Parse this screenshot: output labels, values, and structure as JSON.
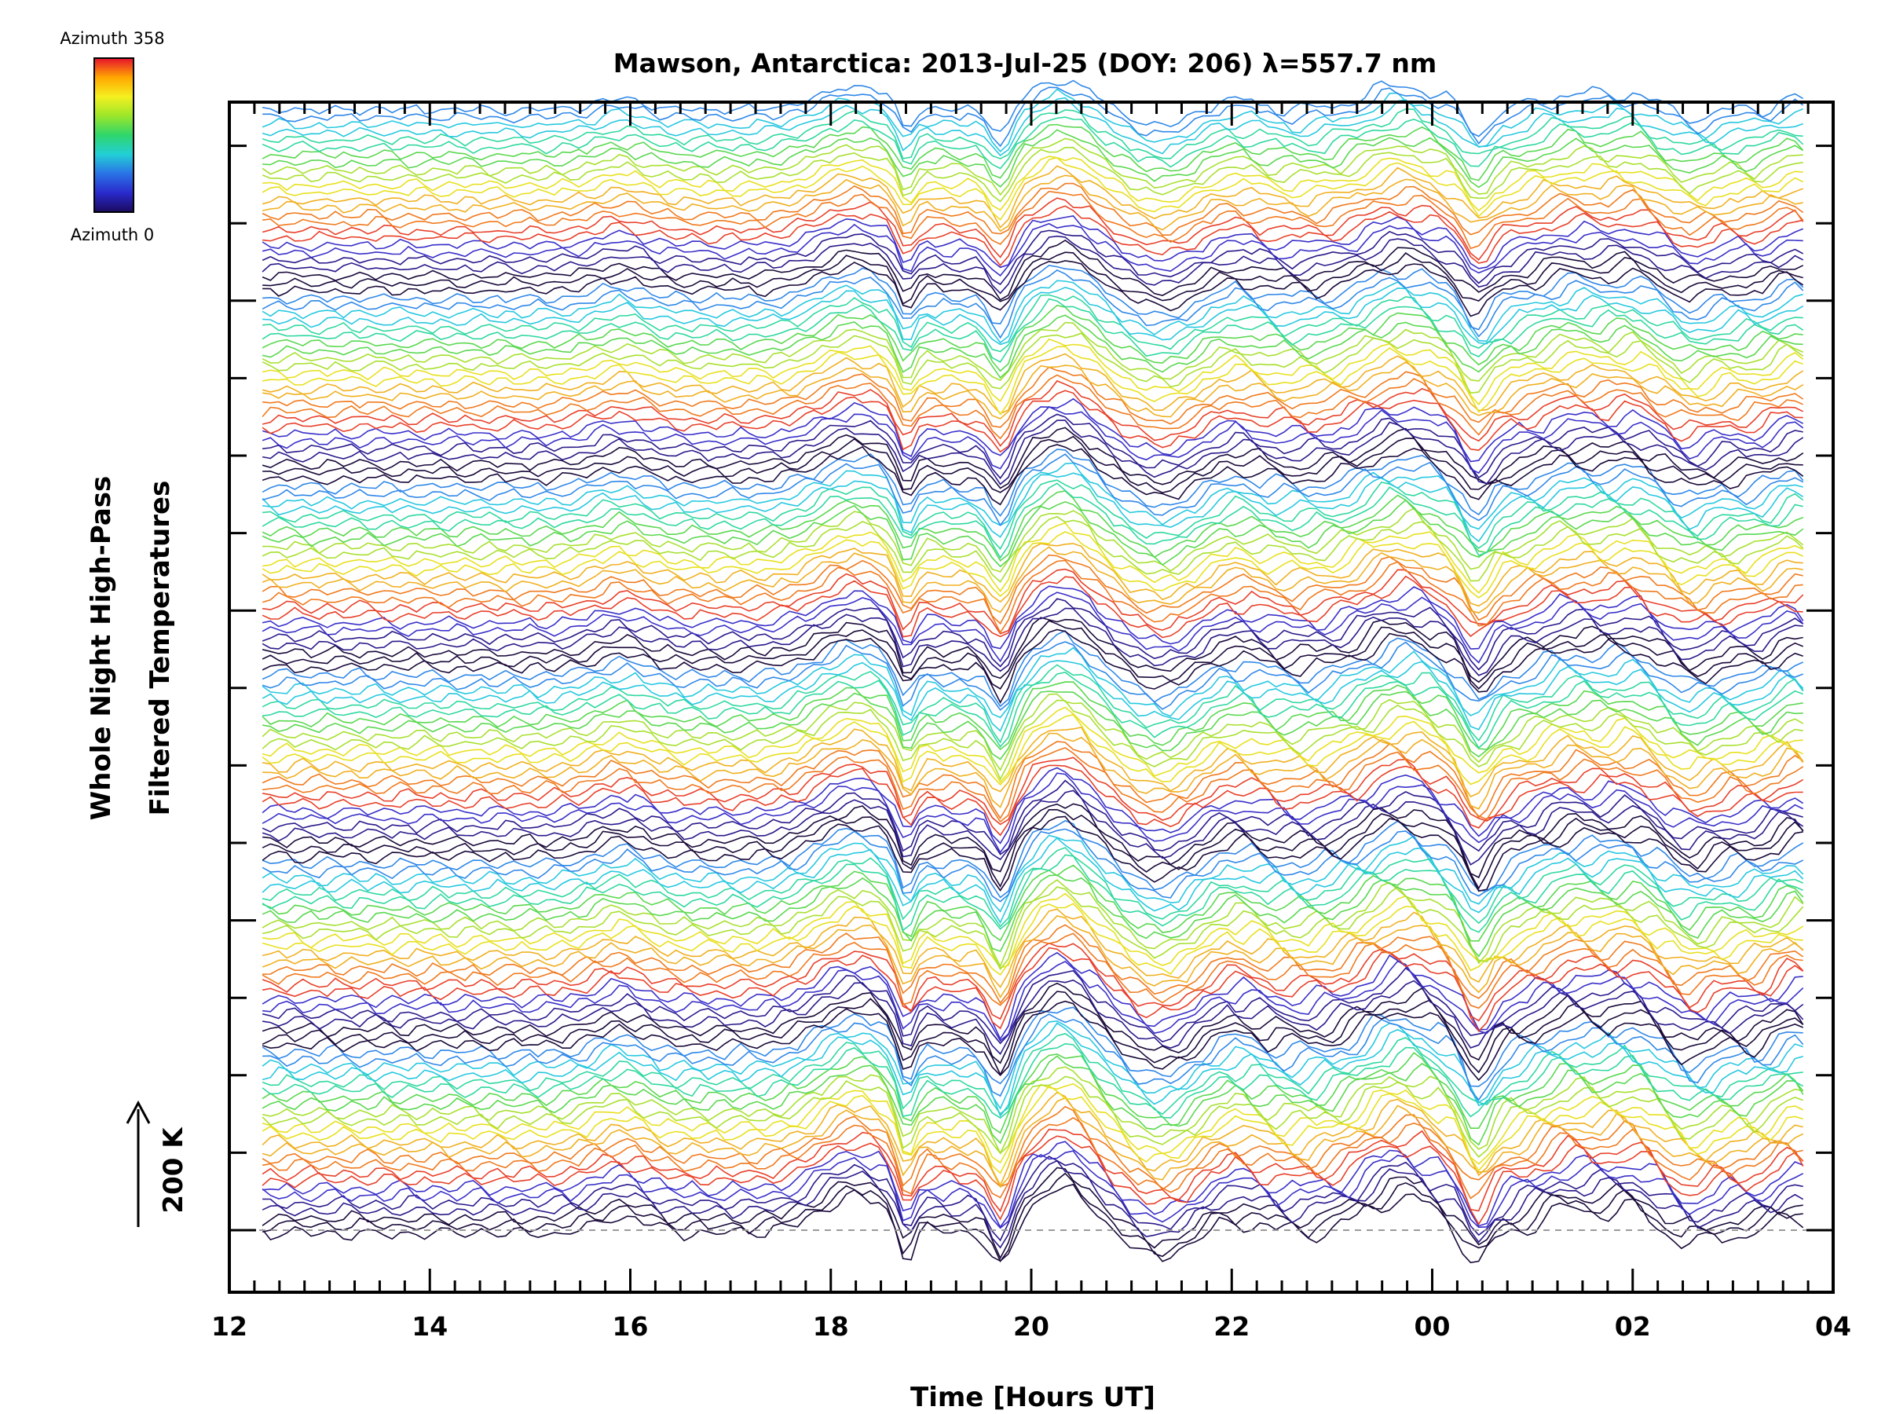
{
  "chart_data": {
    "type": "line",
    "title": "Mawson, Antarctica: 2013-Jul-25 (DOY: 206) λ=557.7 nm",
    "xlabel": "Time [Hours UT]",
    "ylabel_line1": "Whole Night High-Pass",
    "ylabel_line2": "Filtered Temperatures",
    "x_tick_labels": [
      "12",
      "14",
      "16",
      "18",
      "20",
      "22",
      "00",
      "02",
      "04"
    ],
    "x_range_hours": [
      12,
      28
    ],
    "data_x_range_hours": [
      12.33,
      27.7
    ],
    "scale_bar_label": "200 K",
    "colorbar": {
      "top_label": "Azimuth 358",
      "bottom_label": "Azimuth 0",
      "colors": [
        "#e8112d",
        "#ffa600",
        "#f5f020",
        "#9be62a",
        "#2fd66b",
        "#22cfd6",
        "#2a73e6",
        "#2a2acc",
        "#1a0a5e"
      ]
    },
    "stacked_traces": 150,
    "trace_groups": 6,
    "features": {
      "peaks_hours": [
        15.9,
        18.3,
        20.3,
        23.7,
        25.4,
        26.0
      ],
      "dips_hours": [
        18.75,
        19.7,
        21.3,
        24.45
      ]
    }
  }
}
